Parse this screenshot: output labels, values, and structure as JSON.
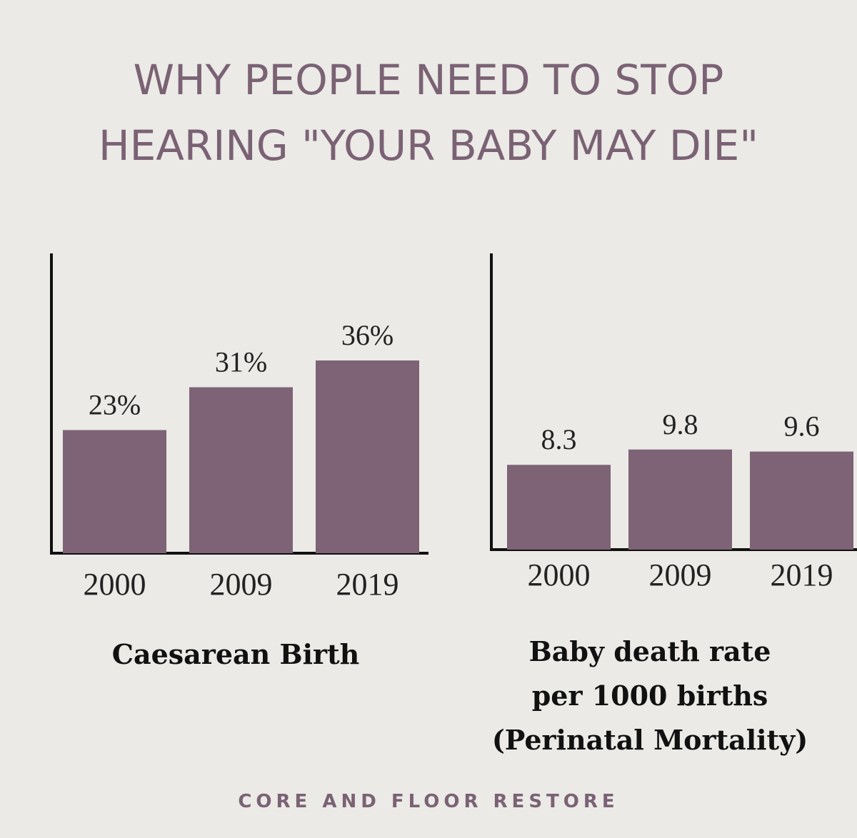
{
  "title": {
    "line1": "WHY PEOPLE NEED TO STOP",
    "line2": "HEARING \"YOUR BABY MAY DIE\""
  },
  "colors": {
    "bar": "#7d6375",
    "title": "#7a6274",
    "axis": "#111111",
    "background": "#ebeae6"
  },
  "chart_data": [
    {
      "type": "bar",
      "title": "Caesarean Birth",
      "categories": [
        "2000",
        "2009",
        "2019"
      ],
      "values": [
        23,
        31,
        36
      ],
      "labels": [
        "23%",
        "31%",
        "36%"
      ],
      "unit": "%",
      "ylim": [
        0,
        56
      ],
      "grid": false
    },
    {
      "type": "bar",
      "title": "Baby death rate per 1000 births (Perinatal Mortality)",
      "title_lines": [
        "Baby death rate",
        "per 1000 births",
        "(Perinatal Mortality)"
      ],
      "categories": [
        "2000",
        "2009",
        "2019"
      ],
      "values": [
        8.3,
        9.8,
        9.6
      ],
      "labels": [
        "8.3",
        "9.8",
        "9.6"
      ],
      "ylim": [
        0,
        29
      ],
      "grid": false
    }
  ],
  "footer": "CORE AND FLOOR RESTORE"
}
